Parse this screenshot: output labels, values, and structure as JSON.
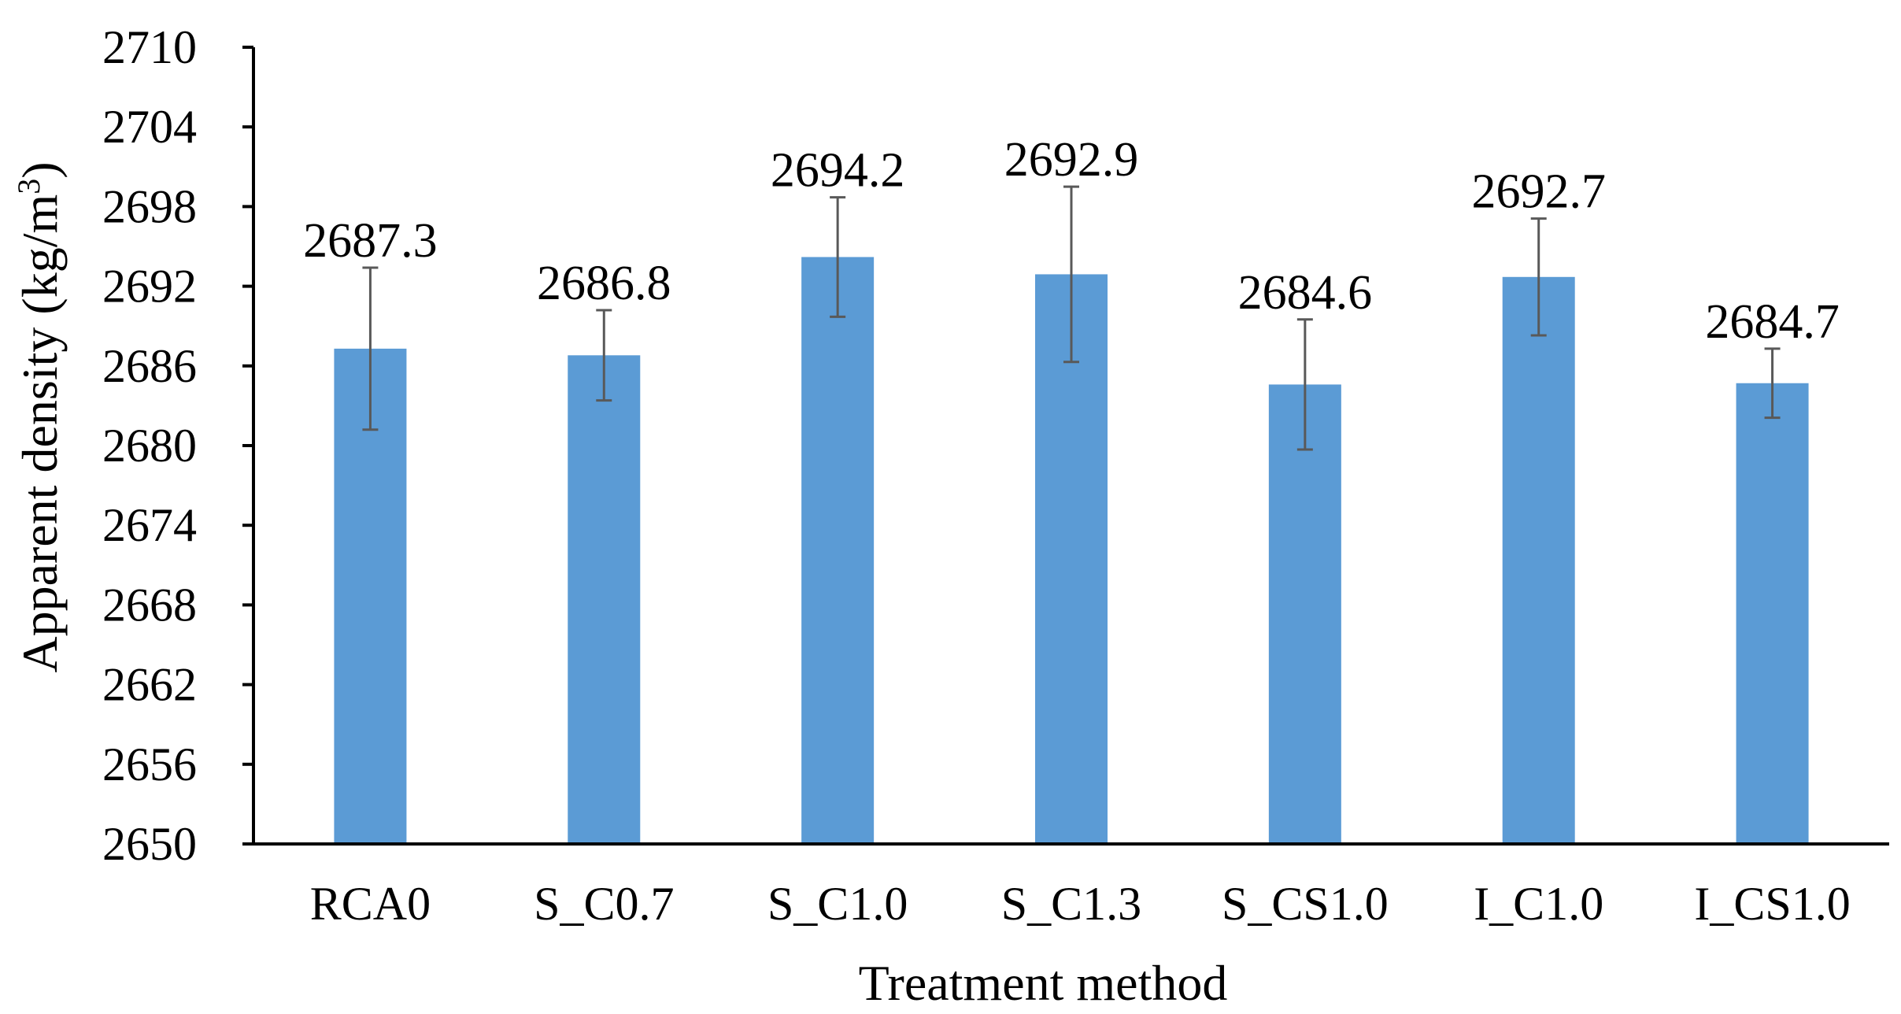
{
  "chart_data": {
    "type": "bar",
    "title": "",
    "xlabel": "Treatment method",
    "ylabel": "Apparent density (kg/m³)",
    "ylabel_base": "Apparent density (kg/m",
    "ylabel_sup": "3",
    "ylabel_close": ")",
    "ylim": [
      2650,
      2710
    ],
    "yticks": [
      2650,
      2656,
      2662,
      2668,
      2674,
      2680,
      2686,
      2692,
      2698,
      2704,
      2710
    ],
    "grid": false,
    "categories": [
      "RCA0",
      "S_C0.7",
      "S_C1.0",
      "S_C1.3",
      "S_CS1.0",
      "I_C1.0",
      "I_CS1.0"
    ],
    "series": [
      {
        "name": "Apparent density",
        "values": [
          2687.3,
          2686.8,
          2694.2,
          2692.9,
          2684.6,
          2692.7,
          2684.7
        ],
        "data_labels": [
          "2687.3",
          "2686.8",
          "2694.2",
          "2692.9",
          "2684.6",
          "2692.7",
          "2684.7"
        ],
        "error": [
          6.1,
          3.4,
          4.5,
          6.6,
          4.9,
          4.4,
          2.6
        ],
        "color": "#5B9BD5"
      }
    ],
    "error_bar_color": "#595959",
    "axis_color": "#000000"
  }
}
